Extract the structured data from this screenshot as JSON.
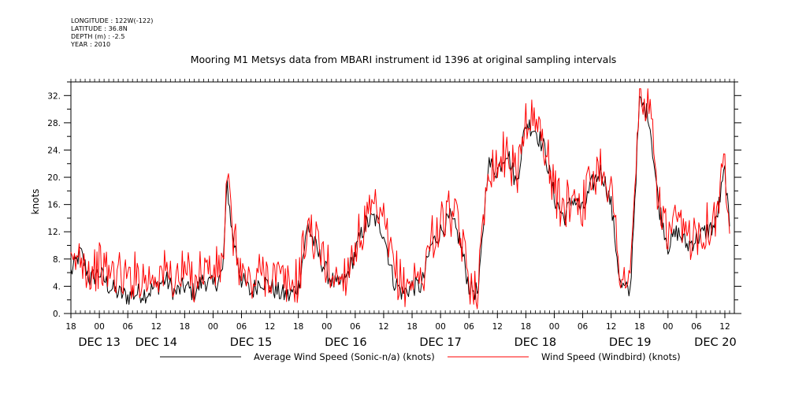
{
  "header": {
    "longitude": "LONGITUDE : 122W(-122)",
    "latitude": "LATITUDE : 36.8N",
    "depth": "DEPTH (m) : -2.5",
    "year": "YEAR : 2010"
  },
  "chart_data": {
    "type": "line",
    "title": "Mooring M1 Metsys data from MBARI instrument id 1396 at original sampling intervals",
    "ylabel": "knots",
    "ylim": [
      0,
      34
    ],
    "yticks": [
      "0.",
      "4.",
      "8.",
      "12.",
      "16.",
      "20.",
      "24.",
      "28.",
      "32."
    ],
    "xlim": [
      -6,
      134
    ],
    "x_unit": "hours from 00 Dec 13 2010",
    "hour_ticks": [
      {
        "h": -6,
        "label": "18"
      },
      {
        "h": 0,
        "label": "00"
      },
      {
        "h": 6,
        "label": "06"
      },
      {
        "h": 12,
        "label": "12"
      },
      {
        "h": 18,
        "label": "18"
      },
      {
        "h": 24,
        "label": "00"
      },
      {
        "h": 30,
        "label": "06"
      },
      {
        "h": 36,
        "label": "12"
      },
      {
        "h": 42,
        "label": "18"
      },
      {
        "h": 48,
        "label": "00"
      },
      {
        "h": 54,
        "label": "06"
      },
      {
        "h": 60,
        "label": "12"
      },
      {
        "h": 66,
        "label": "18"
      },
      {
        "h": 72,
        "label": "00"
      },
      {
        "h": 78,
        "label": "06"
      },
      {
        "h": 84,
        "label": "12"
      },
      {
        "h": 90,
        "label": "18"
      },
      {
        "h": 96,
        "label": "00"
      },
      {
        "h": 102,
        "label": "06"
      },
      {
        "h": 108,
        "label": "12"
      },
      {
        "h": 114,
        "label": "18"
      },
      {
        "h": 120,
        "label": "00"
      },
      {
        "h": 126,
        "label": "06"
      },
      {
        "h": 132,
        "label": "12"
      },
      {
        "h": 138,
        "label": "18"
      }
    ],
    "day_labels": [
      {
        "h": 0,
        "label": "DEC 13"
      },
      {
        "h": 12,
        "label": "DEC 14"
      },
      {
        "h": 32,
        "label": "DEC 15"
      },
      {
        "h": 52,
        "label": "DEC 16"
      },
      {
        "h": 72,
        "label": "DEC 17"
      },
      {
        "h": 92,
        "label": "DEC 18"
      },
      {
        "h": 112,
        "label": "DEC 19"
      },
      {
        "h": 130,
        "label": "DEC 20"
      }
    ],
    "series": [
      {
        "name": "Average Wind Speed (Sonic-n/a) (knots)",
        "color": "#000000",
        "x": [
          -6,
          -4,
          -2,
          0,
          2,
          4,
          6,
          8,
          10,
          12,
          14,
          16,
          18,
          20,
          22,
          24,
          26,
          27,
          28,
          30,
          32,
          34,
          36,
          38,
          40,
          42,
          44,
          46,
          48,
          50,
          52,
          54,
          56,
          58,
          60,
          62,
          64,
          66,
          68,
          70,
          72,
          74,
          76,
          78,
          80,
          82,
          84,
          86,
          88,
          90,
          92,
          94,
          96,
          98,
          100,
          102,
          104,
          106,
          108,
          110,
          112,
          114,
          116,
          118,
          120,
          122,
          124,
          126,
          128,
          130,
          132,
          133
        ],
        "y": [
          6,
          9,
          5,
          6,
          4,
          3,
          2.5,
          3,
          3,
          4,
          5,
          3,
          4,
          3,
          5,
          4,
          6,
          19,
          12,
          5,
          3,
          5,
          4,
          3,
          2.5,
          4,
          13,
          9,
          6,
          4,
          5,
          9,
          13,
          14,
          12,
          5,
          3,
          4,
          4,
          10,
          12,
          14,
          11,
          4,
          3,
          22,
          21,
          24,
          19,
          28,
          27,
          24,
          17,
          14,
          17,
          15,
          19,
          21,
          16,
          4,
          3,
          31,
          29,
          16,
          10,
          12,
          10,
          11,
          12,
          13,
          21,
          12
        ],
        "jitter": 1.5
      },
      {
        "name": "Wind Speed (Windbird) (knots)",
        "color": "#ff0000",
        "x": [
          -6,
          -4,
          -2,
          0,
          2,
          4,
          6,
          8,
          10,
          12,
          14,
          16,
          18,
          20,
          22,
          24,
          26,
          27,
          28,
          30,
          32,
          34,
          36,
          38,
          40,
          42,
          44,
          46,
          48,
          50,
          52,
          54,
          56,
          58,
          60,
          62,
          64,
          66,
          68,
          70,
          72,
          74,
          76,
          78,
          80,
          82,
          84,
          86,
          88,
          90,
          92,
          94,
          96,
          98,
          100,
          102,
          104,
          106,
          108,
          110,
          112,
          114,
          116,
          118,
          120,
          122,
          124,
          126,
          128,
          130,
          132,
          133
        ],
        "y": [
          6,
          9,
          6,
          7,
          6,
          6,
          5,
          6,
          5,
          6,
          6,
          5,
          6,
          5,
          7,
          6,
          7,
          20,
          12,
          6,
          4,
          6,
          6,
          5,
          4,
          5,
          13,
          10,
          7,
          5,
          6,
          10,
          13,
          15,
          13,
          7,
          4,
          5,
          5,
          11,
          13,
          15,
          12,
          5,
          4,
          22,
          22,
          24,
          20,
          29,
          28,
          25,
          18,
          15,
          18,
          16,
          20,
          22,
          18,
          6,
          4,
          32,
          30,
          17,
          11,
          13,
          11,
          12,
          13,
          14,
          22,
          13
        ],
        "jitter": 3.5
      }
    ],
    "legend_placement": "bottom"
  }
}
